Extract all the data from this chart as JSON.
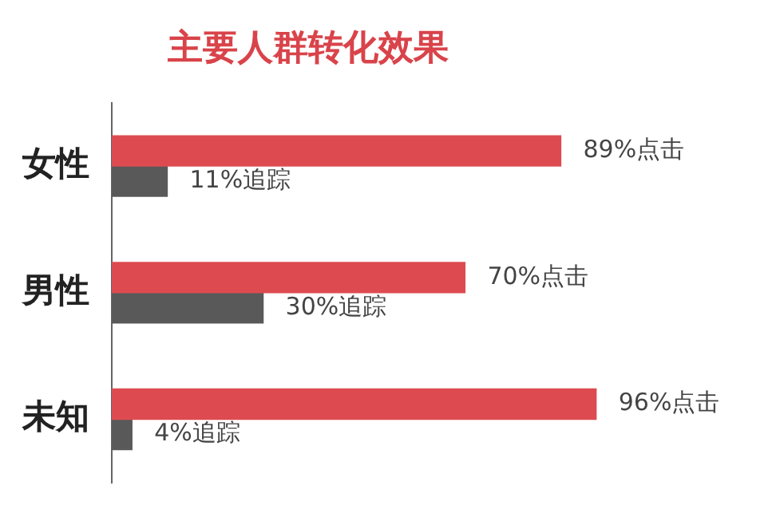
{
  "chart_data": {
    "type": "bar",
    "orientation": "horizontal",
    "title": "主要人群转化效果",
    "categories": [
      "女性",
      "男性",
      "未知"
    ],
    "series": [
      {
        "color": "#dd4b51",
        "values": [
          89,
          70,
          96
        ],
        "value_labels": [
          "89%点击",
          "70%点击",
          "96%点击"
        ]
      },
      {
        "color": "#595959",
        "values": [
          11,
          30,
          4
        ],
        "value_labels": [
          "11%追踪",
          "30%追踪",
          "4%追踪"
        ]
      }
    ],
    "legend": false
  }
}
